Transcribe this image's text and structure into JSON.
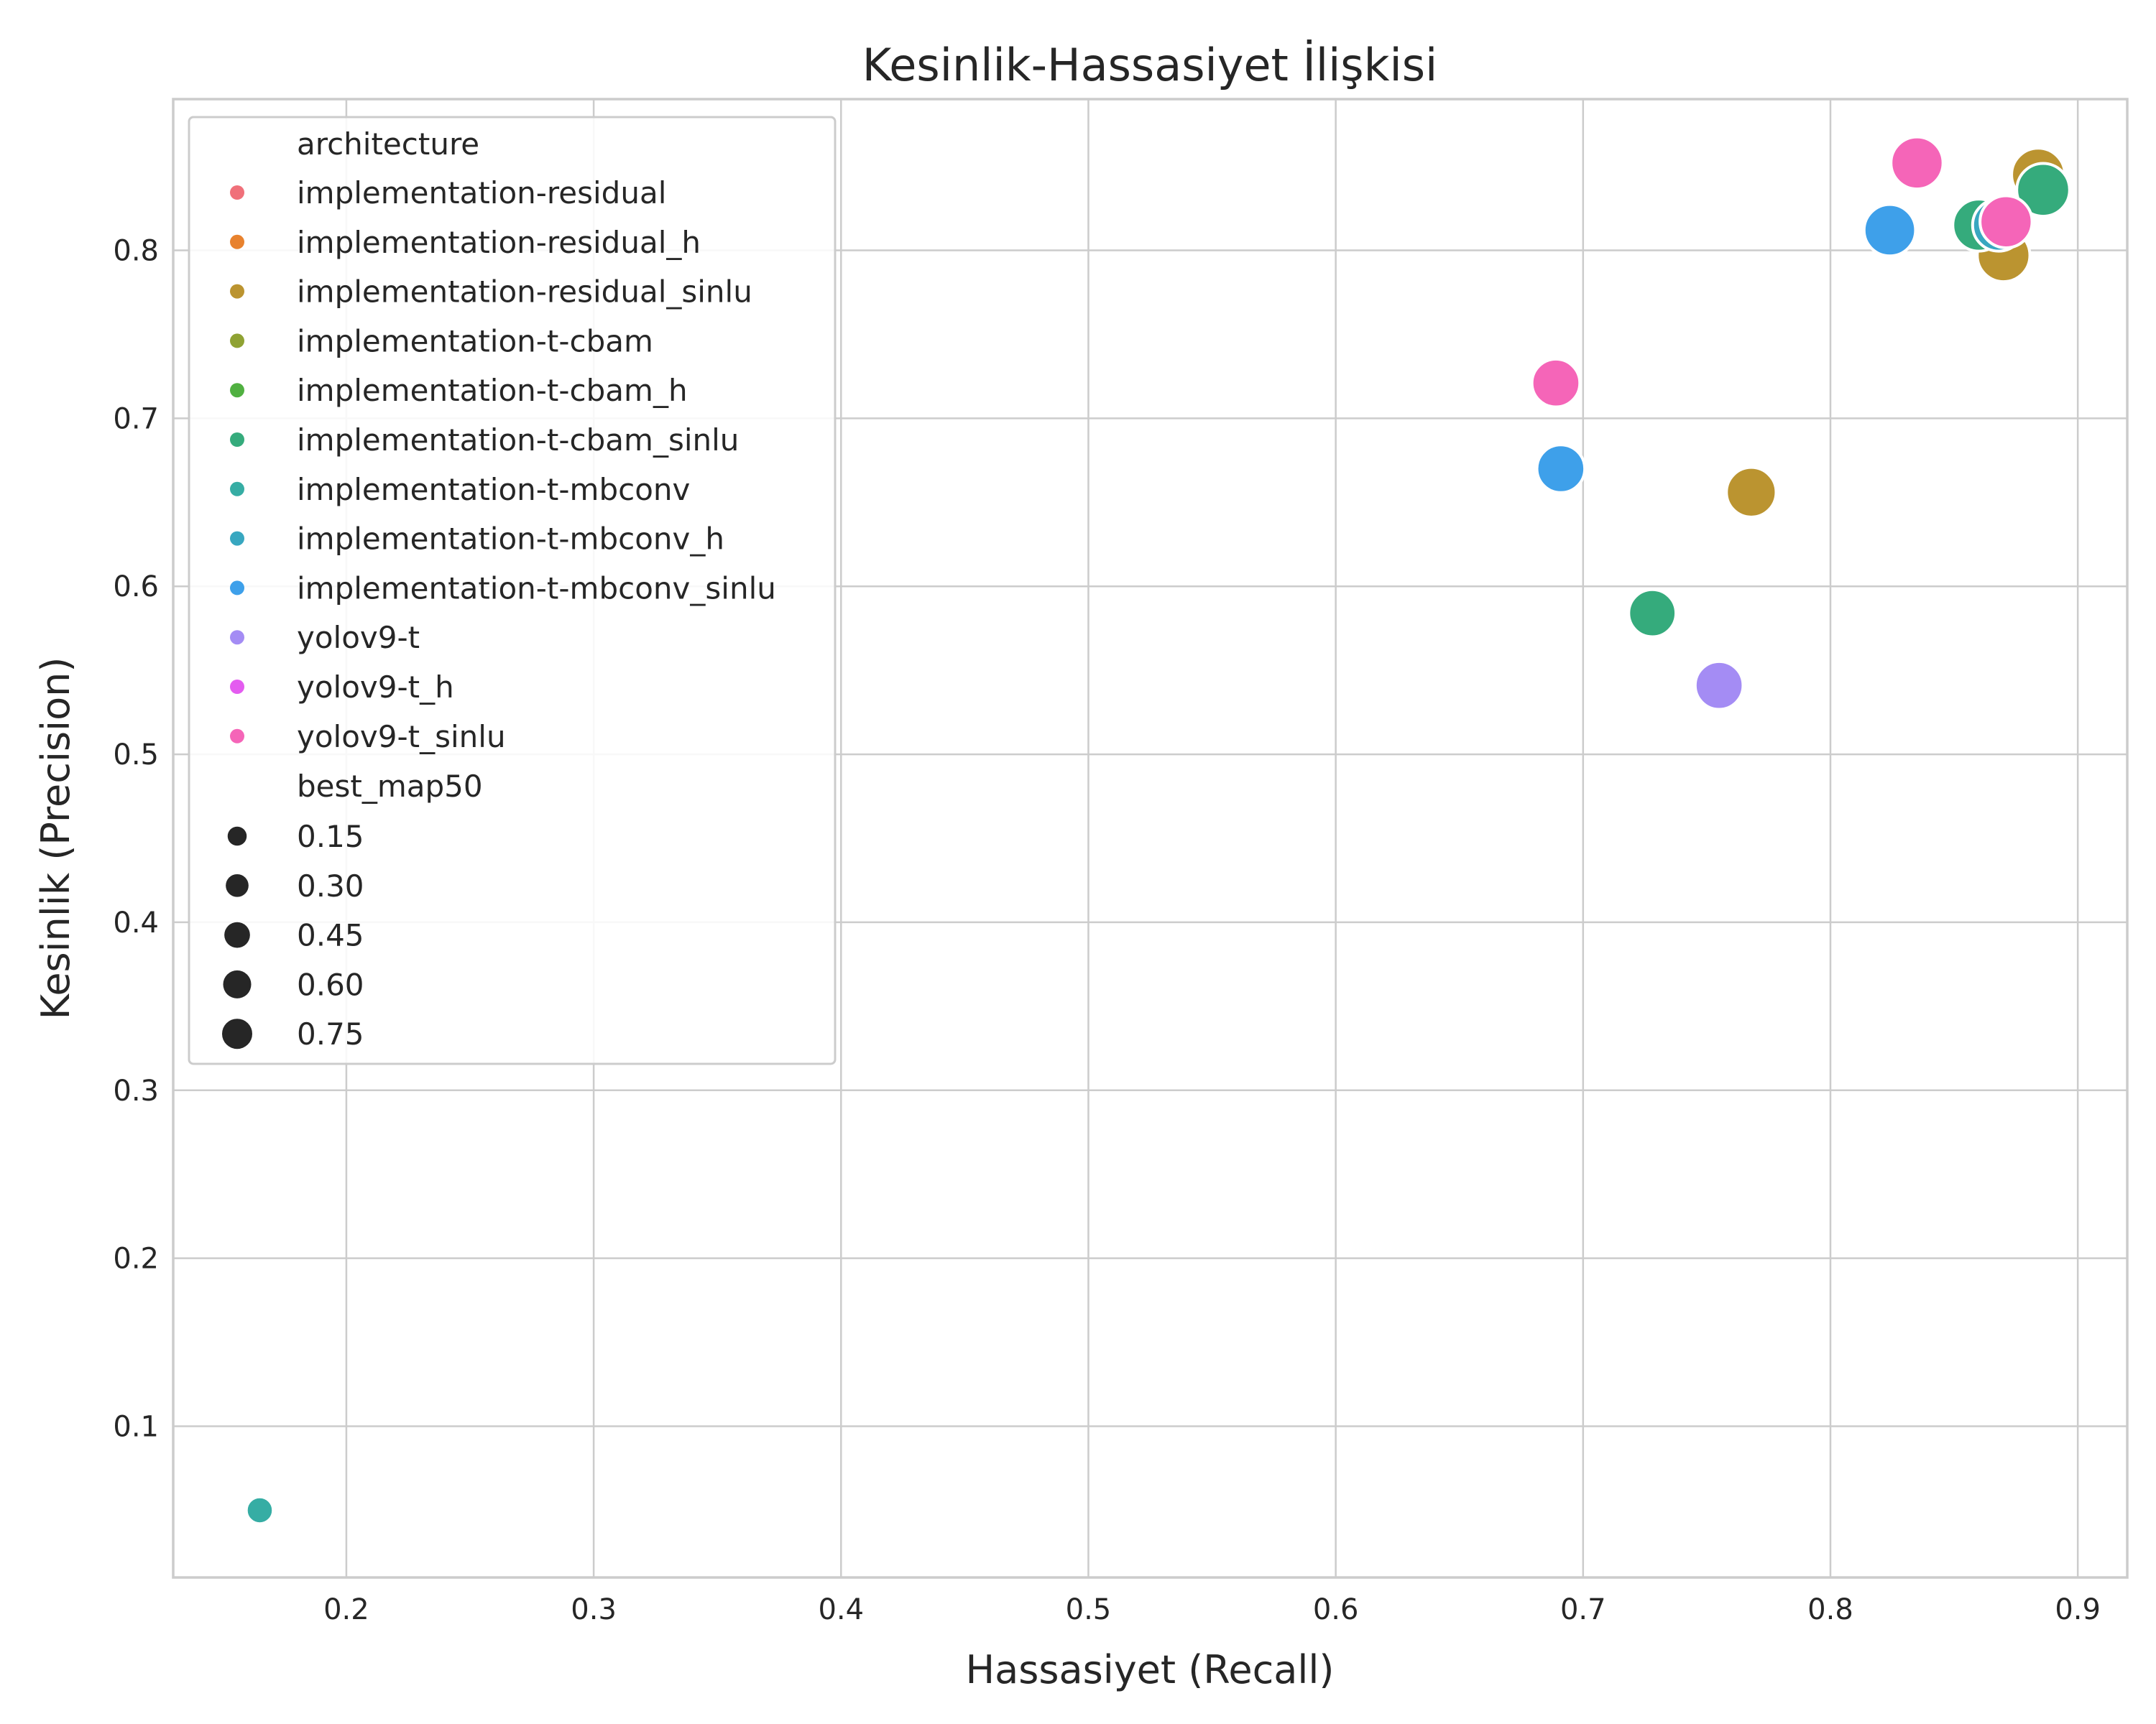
{
  "chart_data": {
    "type": "scatter",
    "title": "Kesinlik-Hassasiyet İlişkisi",
    "xlabel": "Hassasiyet (Recall)",
    "ylabel": "Kesinlik (Precision)",
    "xlim": [
      0.13,
      0.92
    ],
    "ylim": [
      0.01,
      0.89
    ],
    "xticks": [
      0.2,
      0.3,
      0.4,
      0.5,
      0.6,
      0.7,
      0.8,
      0.9
    ],
    "xtick_labels": [
      "0.2",
      "0.3",
      "0.4",
      "0.5",
      "0.6",
      "0.7",
      "0.8",
      "0.9"
    ],
    "yticks": [
      0.1,
      0.2,
      0.3,
      0.4,
      0.5,
      0.6,
      0.7,
      0.8
    ],
    "ytick_labels": [
      "0.1",
      "0.2",
      "0.3",
      "0.4",
      "0.5",
      "0.6",
      "0.7",
      "0.8"
    ],
    "grid": true,
    "legend_position": "upper-left",
    "hue_title": "architecture",
    "size_title": "best_map50",
    "size_levels": [
      0.15,
      0.3,
      0.45,
      0.6,
      0.75
    ],
    "size_level_labels": [
      "0.15",
      "0.30",
      "0.45",
      "0.60",
      "0.75"
    ],
    "series": [
      {
        "name": "implementation-residual",
        "color": "#f0707a",
        "points": []
      },
      {
        "name": "implementation-residual_h",
        "color": "#e8822e",
        "points": []
      },
      {
        "name": "implementation-residual_sinlu",
        "color": "#bb9430",
        "points": [
          {
            "x": 0.884,
            "y": 0.845,
            "size": 0.78
          },
          {
            "x": 0.87,
            "y": 0.797,
            "size": 0.76
          },
          {
            "x": 0.768,
            "y": 0.656,
            "size": 0.66
          }
        ]
      },
      {
        "name": "implementation-t-cbam",
        "color": "#8fa233",
        "points": []
      },
      {
        "name": "implementation-t-cbam_h",
        "color": "#50b041",
        "points": []
      },
      {
        "name": "implementation-t-cbam_sinlu",
        "color": "#35ab7c",
        "points": [
          {
            "x": 0.886,
            "y": 0.836,
            "size": 0.77
          },
          {
            "x": 0.86,
            "y": 0.815,
            "size": 0.74
          },
          {
            "x": 0.728,
            "y": 0.584,
            "size": 0.58
          }
        ]
      },
      {
        "name": "implementation-t-mbconv",
        "color": "#36ada4",
        "points": [
          {
            "x": 0.165,
            "y": 0.05,
            "size": 0.12
          }
        ]
      },
      {
        "name": "implementation-t-mbconv_h",
        "color": "#38a7c0",
        "points": [
          {
            "x": 0.868,
            "y": 0.815,
            "size": 0.74
          }
        ]
      },
      {
        "name": "implementation-t-mbconv_sinlu",
        "color": "#3ea0ea",
        "points": [
          {
            "x": 0.824,
            "y": 0.812,
            "size": 0.72
          },
          {
            "x": 0.691,
            "y": 0.67,
            "size": 0.6
          }
        ]
      },
      {
        "name": "yolov9-t",
        "color": "#a48cf4",
        "points": [
          {
            "x": 0.755,
            "y": 0.541,
            "size": 0.6
          }
        ]
      },
      {
        "name": "yolov9-t_h",
        "color": "#e45cf0",
        "points": []
      },
      {
        "name": "yolov9-t_sinlu",
        "color": "#f565b8",
        "points": [
          {
            "x": 0.835,
            "y": 0.852,
            "size": 0.74
          },
          {
            "x": 0.871,
            "y": 0.817,
            "size": 0.74
          },
          {
            "x": 0.689,
            "y": 0.721,
            "size": 0.6
          }
        ]
      }
    ]
  }
}
